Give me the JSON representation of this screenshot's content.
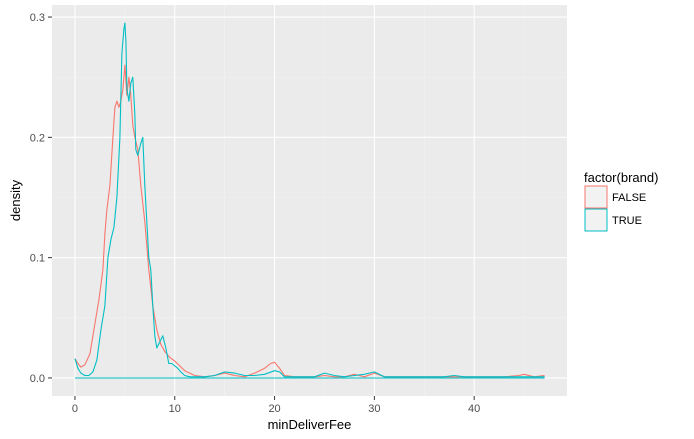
{
  "chart_data": {
    "type": "line",
    "subtype": "density",
    "xlabel": "minDeliverFee",
    "ylabel": "density",
    "xlim": [
      -2.3,
      49.3
    ],
    "ylim": [
      -0.015,
      0.31
    ],
    "x_ticks": [
      0,
      10,
      20,
      30,
      40
    ],
    "x_tick_labels": [
      "0",
      "10",
      "20",
      "30",
      "40"
    ],
    "y_ticks": [
      0.0,
      0.1,
      0.2,
      0.3
    ],
    "y_tick_labels": [
      "0.0",
      "0.1",
      "0.2",
      "0.3"
    ],
    "grid": true,
    "panel_background": "#ebebeb",
    "legend": {
      "title": "factor(brand)",
      "position": "right"
    },
    "series": [
      {
        "name": "FALSE",
        "color": "#f8766d",
        "x": [
          0,
          0.3,
          0.6,
          1.0,
          1.5,
          2.0,
          2.4,
          2.8,
          3.0,
          3.2,
          3.5,
          3.8,
          4.0,
          4.2,
          4.4,
          4.6,
          4.8,
          5.0,
          5.2,
          5.4,
          5.6,
          5.8,
          6.0,
          6.3,
          6.6,
          7.0,
          7.4,
          7.8,
          8.2,
          8.6,
          9.0,
          9.5,
          10.0,
          10.5,
          11.0,
          11.5,
          12.0,
          13.0,
          14.0,
          15.0,
          15.5,
          16.0,
          17.0,
          18.0,
          19.0,
          19.6,
          20.0,
          20.5,
          21.0,
          22.0,
          24.0,
          25.0,
          26.0,
          27.0,
          28.0,
          29.0,
          30.0,
          31.0,
          33.0,
          36.0,
          38.0,
          40.0,
          43.0,
          44.5,
          45.0,
          46.0,
          47.0,
          47.0,
          0
        ],
        "y": [
          0.016,
          0.012,
          0.009,
          0.011,
          0.02,
          0.045,
          0.065,
          0.09,
          0.12,
          0.14,
          0.16,
          0.2,
          0.225,
          0.23,
          0.225,
          0.23,
          0.24,
          0.26,
          0.235,
          0.25,
          0.235,
          0.21,
          0.2,
          0.19,
          0.16,
          0.13,
          0.09,
          0.06,
          0.04,
          0.028,
          0.022,
          0.017,
          0.014,
          0.01,
          0.006,
          0.004,
          0.002,
          0.001,
          0.002,
          0.004,
          0.003,
          0.002,
          0.001,
          0.004,
          0.008,
          0.012,
          0.013,
          0.008,
          0.002,
          0.001,
          0.001,
          0.002,
          0.001,
          0.001,
          0.003,
          0.001,
          0.004,
          0.001,
          0.001,
          0.001,
          0.001,
          0.001,
          0.001,
          0.002,
          0.003,
          0.001,
          0.002,
          0.0,
          0.0
        ]
      },
      {
        "name": "TRUE",
        "color": "#00bfc4",
        "x": [
          0,
          0.3,
          0.6,
          1.0,
          1.4,
          1.8,
          2.2,
          2.6,
          3.0,
          3.3,
          3.6,
          3.9,
          4.2,
          4.5,
          4.7,
          4.9,
          5.0,
          5.1,
          5.2,
          5.4,
          5.6,
          5.8,
          6.0,
          6.1,
          6.3,
          6.6,
          6.8,
          7.0,
          7.2,
          7.4,
          7.6,
          7.8,
          8.0,
          8.2,
          8.5,
          8.8,
          9.1,
          9.4,
          9.7,
          10.0,
          10.3,
          10.6,
          11.0,
          11.5,
          12.0,
          13.0,
          14.0,
          15.0,
          16.0,
          17.0,
          18.0,
          19.0,
          20.0,
          20.5,
          21.0,
          22.0,
          24.0,
          25.0,
          26.0,
          27.0,
          28.0,
          29.0,
          30.0,
          31.0,
          33.0,
          37.0,
          38.0,
          39.0,
          42.0,
          45.0,
          47.0,
          47.0,
          0
        ],
        "y": [
          0.016,
          0.008,
          0.004,
          0.002,
          0.002,
          0.005,
          0.015,
          0.04,
          0.06,
          0.1,
          0.115,
          0.125,
          0.15,
          0.2,
          0.27,
          0.29,
          0.295,
          0.28,
          0.24,
          0.23,
          0.245,
          0.25,
          0.22,
          0.19,
          0.185,
          0.195,
          0.2,
          0.16,
          0.13,
          0.1,
          0.09,
          0.06,
          0.035,
          0.025,
          0.03,
          0.035,
          0.025,
          0.012,
          0.012,
          0.01,
          0.008,
          0.005,
          0.002,
          0.001,
          0.001,
          0.001,
          0.002,
          0.005,
          0.004,
          0.002,
          0.002,
          0.003,
          0.006,
          0.005,
          0.001,
          0.001,
          0.001,
          0.004,
          0.002,
          0.001,
          0.002,
          0.003,
          0.005,
          0.001,
          0.001,
          0.001,
          0.002,
          0.001,
          0.001,
          0.001,
          0.001,
          0.0,
          0.0
        ]
      }
    ]
  }
}
